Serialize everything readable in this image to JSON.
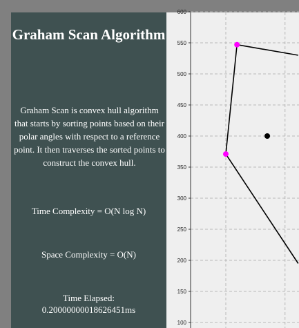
{
  "sidebar": {
    "title": "Graham Scan Algorithm",
    "description": "Graham Scan is convex hull algorithm that starts by sorting points based on their polar angles with respect to a reference point. It then traverses the sorted points to construct the convex hull.",
    "time_complexity": "Time Complexity = O(N log N)",
    "space_complexity": "Space Complexity = O(N)",
    "time_elapsed_label": "Time Elapsed:",
    "time_elapsed_value": "0.20000000018626451ms"
  },
  "colors": {
    "sidebar_bg": "#3f5151",
    "hull_point": "#ff00ff",
    "interior_point": "#000000",
    "hull_line": "#000000"
  },
  "chart_data": {
    "type": "scatter",
    "y_ticks": [
      600,
      550,
      500,
      450,
      400,
      350,
      300,
      250,
      200,
      150,
      100
    ],
    "grid": true,
    "hull_points": [
      {
        "x": 347,
        "y": 547
      },
      {
        "x": 330,
        "y": 371
      }
    ],
    "interior_points": [
      {
        "x": 393,
        "y": 400
      }
    ],
    "hull_edges": [
      {
        "from": {
          "x": 347,
          "y": 547
        },
        "to": {
          "x": 440,
          "y": 530
        }
      },
      {
        "from": {
          "x": 347,
          "y": 547
        },
        "to": {
          "x": 330,
          "y": 371
        }
      },
      {
        "from": {
          "x": 330,
          "y": 371
        },
        "to": {
          "x": 440,
          "y": 195
        }
      }
    ]
  }
}
